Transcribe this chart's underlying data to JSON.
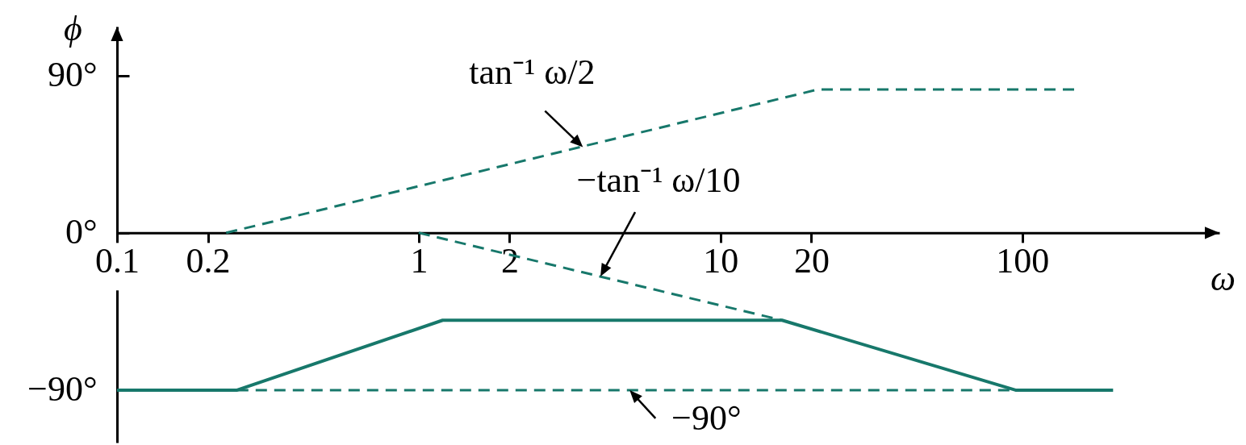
{
  "chart_data": {
    "type": "line",
    "xlabel": "ω",
    "ylabel": "ϕ",
    "log": "x",
    "xlim": [
      0.1,
      450
    ],
    "ylim": [
      -120,
      118
    ],
    "xticks": [
      0.1,
      0.2,
      1,
      2,
      10,
      20,
      100
    ],
    "yticks": [
      {
        "value": 90,
        "label": "90°"
      },
      {
        "value": 0,
        "label": "0°"
      },
      {
        "value": -90,
        "label": "−90°"
      }
    ],
    "series": [
      {
        "color": "#17786b",
        "line_style": "dashed",
        "x": [
          0.23,
          21,
          150
        ],
        "values": [
          0,
          82,
          82
        ]
      },
      {
        "color": "#17786b",
        "line_style": "dashed",
        "x": [
          1,
          16
        ],
        "values": [
          0,
          -50
        ]
      },
      {
        "color": "#17786b",
        "line_style": "dashed",
        "x": [
          0.25,
          95
        ],
        "values": [
          -90,
          -90
        ]
      },
      {
        "color": "#17786b",
        "line_style": "solid",
        "x": [
          0.1,
          0.25,
          1.2,
          16,
          95,
          200
        ],
        "values": [
          -90,
          -90,
          -50,
          -50,
          -90,
          -90
        ]
      }
    ],
    "annotations": [
      {
        "text": "tan⁻¹ ω/2",
        "x": 3.5,
        "y": 49
      },
      {
        "text": "−tan⁻¹ ω/10",
        "x": 4,
        "y": -25
      },
      {
        "text": "−90°",
        "x": 5,
        "y": -90
      }
    ]
  }
}
